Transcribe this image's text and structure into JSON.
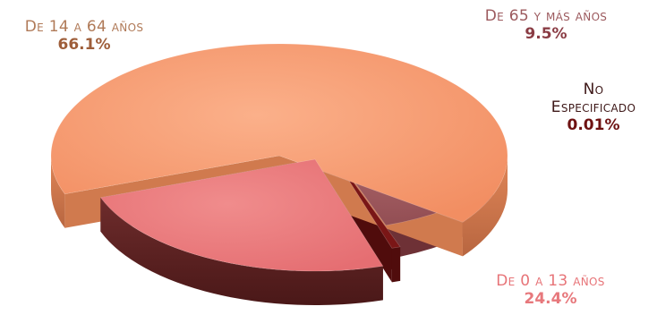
{
  "chart_data": {
    "type": "pie",
    "style": "3d-exploded",
    "title": "",
    "slices": [
      {
        "label": "De 14 a 64 años",
        "value": 66.1,
        "display": "66.1%",
        "color": "#F59B70",
        "side_color": "#D07A4E",
        "label_color": "#B07A58",
        "value_color": "#9E5E3A"
      },
      {
        "label": "De 65 y más años",
        "value": 9.5,
        "display": "9.5%",
        "color": "#9C565C",
        "side_color": "#6E3136",
        "label_color": "#9C5A5E",
        "value_color": "#8A3C44"
      },
      {
        "label_lines": [
          "No",
          "Especificado"
        ],
        "label": "No Especificado",
        "value": 0.01,
        "display": "0.01%",
        "color": "#7A1616",
        "side_color": "#500C0C",
        "label_color": "#3E1818",
        "value_color": "#6E1212"
      },
      {
        "label": "De 0 a 13 años",
        "value": 24.4,
        "display": "24.4%",
        "color": "#EC7B7B",
        "side_color": "#5E2424",
        "label_color": "#E77478",
        "value_color": "#E7787C"
      }
    ]
  }
}
